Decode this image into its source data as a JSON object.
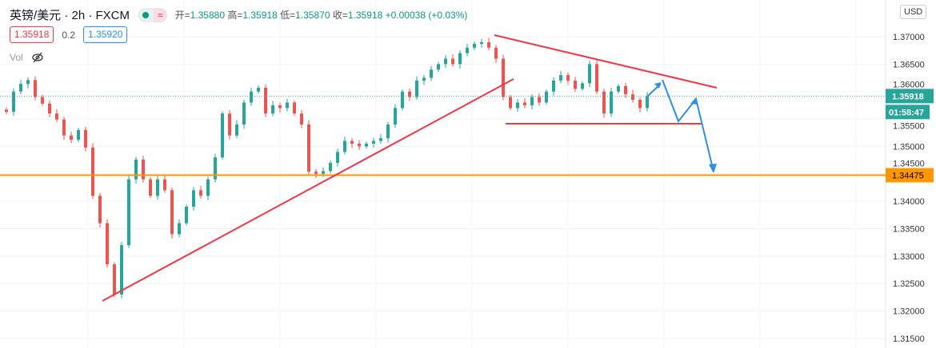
{
  "header": {
    "symbol": "英镑/美元 · 2h · FXCM",
    "open_label": "开=",
    "open": "1.35880",
    "high_label": "高=",
    "high": "1.35918",
    "low_label": "低=",
    "low": "1.35870",
    "close_label": "收=",
    "close": "1.35918",
    "change": "+0.00038 (+0.03%)"
  },
  "quote": {
    "sell": "1.35918",
    "spread": "0.2",
    "buy": "1.35920"
  },
  "vol_label": "Vol",
  "currency_button": "USD",
  "colors": {
    "up": "#26a69a",
    "down": "#ef5350",
    "trend": "#f23645",
    "support": "#ff9800",
    "arrow": "#2f8fe0"
  },
  "chart_data": {
    "type": "candlestick",
    "ylim": [
      1.3125,
      1.3755
    ],
    "yticks": [
      1.37,
      1.365,
      1.36,
      1.355,
      1.35,
      1.345,
      1.34,
      1.335,
      1.33,
      1.325,
      1.32,
      1.315
    ],
    "ytick_labels": [
      "1.37000",
      "1.36500",
      "1.36000",
      "1.35500",
      "1.35000",
      "1.34500",
      "1.34000",
      "1.33500",
      "1.33000",
      "1.32500",
      "1.32000",
      "1.31500"
    ],
    "last_price": 1.35918,
    "last_price_label": "1.35918",
    "countdown": "01:58:47",
    "support_level": 1.34475,
    "support_label": "1.34475",
    "closes": [
      1.3563,
      1.36,
      1.3614,
      1.3621,
      1.359,
      1.3578,
      1.356,
      1.3549,
      1.352,
      1.3512,
      1.353,
      1.3498,
      1.341,
      1.336,
      1.3285,
      1.323,
      1.332,
      1.344,
      1.3476,
      1.344,
      1.341,
      1.344,
      1.342,
      1.334,
      1.336,
      1.339,
      1.342,
      1.341,
      1.344,
      1.348,
      1.356,
      1.352,
      1.354,
      1.358,
      1.36,
      1.3607,
      1.356,
      1.3575,
      1.357,
      1.358,
      1.356,
      1.354,
      1.3454,
      1.345,
      1.3455,
      1.347,
      1.349,
      1.351,
      1.3505,
      1.35,
      1.3505,
      1.351,
      1.3515,
      1.354,
      1.357,
      1.36,
      1.359,
      1.362,
      1.3625,
      1.364,
      1.365,
      1.366,
      1.365,
      1.367,
      1.368,
      1.3687,
      1.369,
      1.368,
      1.366,
      1.359,
      1.357,
      1.358,
      1.3575,
      1.359,
      1.358,
      1.36,
      1.362,
      1.363,
      1.362,
      1.3605,
      1.3615,
      1.365,
      1.36,
      1.356,
      1.36,
      1.361,
      1.3595,
      1.3585,
      1.357,
      1.3592
    ]
  }
}
